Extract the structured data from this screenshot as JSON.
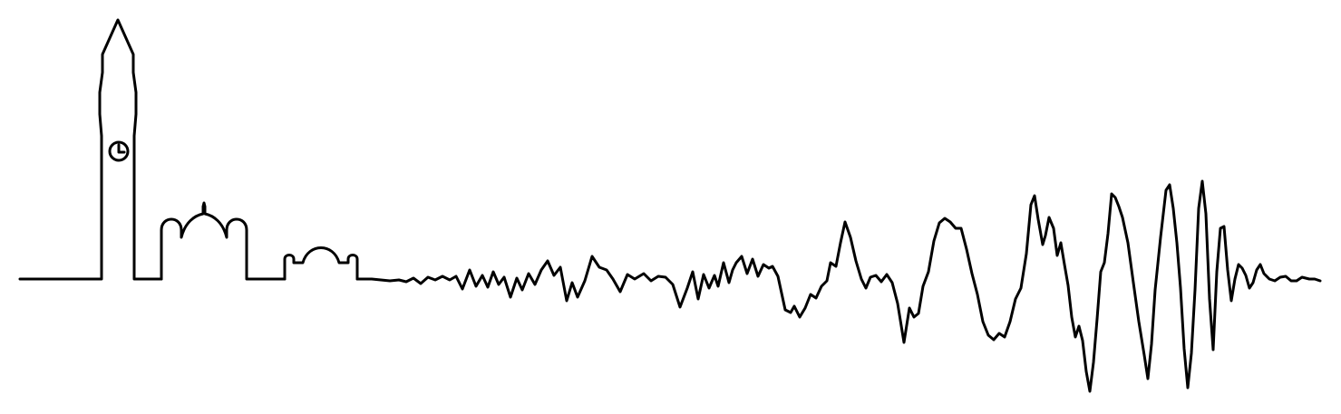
{
  "illustration": {
    "subject": "skyline-seismogram",
    "line_color": "#000000",
    "background_color": "#ffffff",
    "elements": [
      "clock-tower",
      "domed-building",
      "small-domed-building",
      "seismic-waveform"
    ]
  }
}
